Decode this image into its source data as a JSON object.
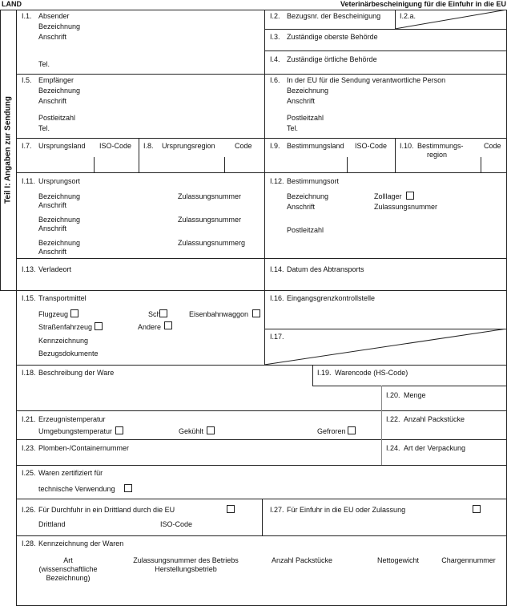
{
  "header": {
    "country": "LAND",
    "title": "Veterinärbescheinigung für die Einfuhr in die EU"
  },
  "side_label": "Teil I: Angaben zur Sendung",
  "i1": {
    "num": "I.1.",
    "label": "Absender",
    "name": "Bezeichnung",
    "address": "Anschrift",
    "tel": "Tel."
  },
  "i2": {
    "num": "I.2.",
    "label": "Bezugsnr. der Bescheinigung"
  },
  "i2a": {
    "num": "I.2.a."
  },
  "i3": {
    "num": "I.3.",
    "label": "Zuständige oberste Behörde"
  },
  "i4": {
    "num": "I.4.",
    "label": "Zuständige örtliche Behörde"
  },
  "i5": {
    "num": "I.5.",
    "label": "Empfänger",
    "name": "Bezeichnung",
    "address": "Anschrift",
    "postcode": "Postleitzahl",
    "tel": "Tel."
  },
  "i6": {
    "num": "I.6.",
    "label": "In der EU für die Sendung verantwortliche Person",
    "name": "Bezeichnung",
    "address": "Anschrift",
    "postcode": "Postleitzahl",
    "tel": "Tel."
  },
  "i7": {
    "num": "I.7.",
    "label": "Ursprungsland",
    "code": "ISO-Code"
  },
  "i8": {
    "num": "I.8.",
    "label": "Ursprungsregion",
    "code": "Code"
  },
  "i9": {
    "num": "I.9.",
    "label": "Bestimmungsland",
    "code": "ISO-Code"
  },
  "i10": {
    "num": "I.10.",
    "label1": "Bestimmungs-",
    "label2": "region",
    "code": "Code"
  },
  "i11": {
    "num": "I.11.",
    "label": "Ursprungsort",
    "entries": [
      {
        "name": "Bezeichnung",
        "approval": "Zulassungsnummer",
        "address": "Anschrift"
      },
      {
        "name": "Bezeichnung",
        "approval": "Zulassungsnummer",
        "address": "Anschrift"
      },
      {
        "name": "Bezeichnung",
        "approval": "Zulassungsnummerg",
        "address": "Anschrift"
      }
    ]
  },
  "i12": {
    "num": "I.12.",
    "label": "Bestimmungsort",
    "name": "Bezeichnung",
    "customs": "Zolllager",
    "address": "Anschrift",
    "approval": "Zulassungsnummer",
    "postcode": "Postleitzahl"
  },
  "i13": {
    "num": "I.13.",
    "label": "Verladeort"
  },
  "i14": {
    "num": "I.14.",
    "label": "Datum des Abtransports"
  },
  "i15": {
    "num": "I.15.",
    "label": "Transportmittel",
    "plane": "Flugzeug",
    "ship": "Schiff",
    "rail": "Eisenbahnwaggon",
    "road": "Straßenfahrzeug",
    "other": "Andere",
    "ident": "Kennzeichnung",
    "docs": "Bezugsdokumente"
  },
  "i16": {
    "num": "I.16.",
    "label": "Eingangsgrenzkontrollstelle"
  },
  "i17": {
    "num": "I.17."
  },
  "i18": {
    "num": "I.18.",
    "label": "Beschreibung der Ware"
  },
  "i19": {
    "num": "I.19.",
    "label": "Warencode (HS-Code)"
  },
  "i20": {
    "num": "I.20.",
    "label": "Menge"
  },
  "i21": {
    "num": "I.21.",
    "label": "Erzeugnistemperatur",
    "ambient": "Umgebungstemperatur",
    "chilled": "Gekühlt",
    "frozen": "Gefroren"
  },
  "i22": {
    "num": "I.22.",
    "label": "Anzahl Packstücke"
  },
  "i23": {
    "num": "I.23.",
    "label": "Plomben-/Containernummer"
  },
  "i24": {
    "num": "I.24.",
    "label": "Art der Verpackung"
  },
  "i25": {
    "num": "I.25.",
    "label": "Waren zertifiziert für",
    "technical": "technische Verwendung"
  },
  "i26": {
    "num": "I.26.",
    "label": "Für Durchfuhr in ein Drittland durch die EU",
    "country": "Drittland",
    "code": "ISO-Code"
  },
  "i27": {
    "num": "I.27.",
    "label": "Für Einfuhr in die EU oder Zulassung"
  },
  "i28": {
    "num": "I.28.",
    "label": "Kennzeichnung der Waren",
    "col_art": [
      "Art",
      "(wissenschaftliche",
      "Bezeichnung)"
    ],
    "col_approval": [
      "Zulassungsnummer des Betriebs",
      "Herstellungsbetrieb"
    ],
    "col_packages": "Anzahl Packstücke",
    "col_net": "Nettogewicht",
    "col_batch": "Chargennummer"
  }
}
